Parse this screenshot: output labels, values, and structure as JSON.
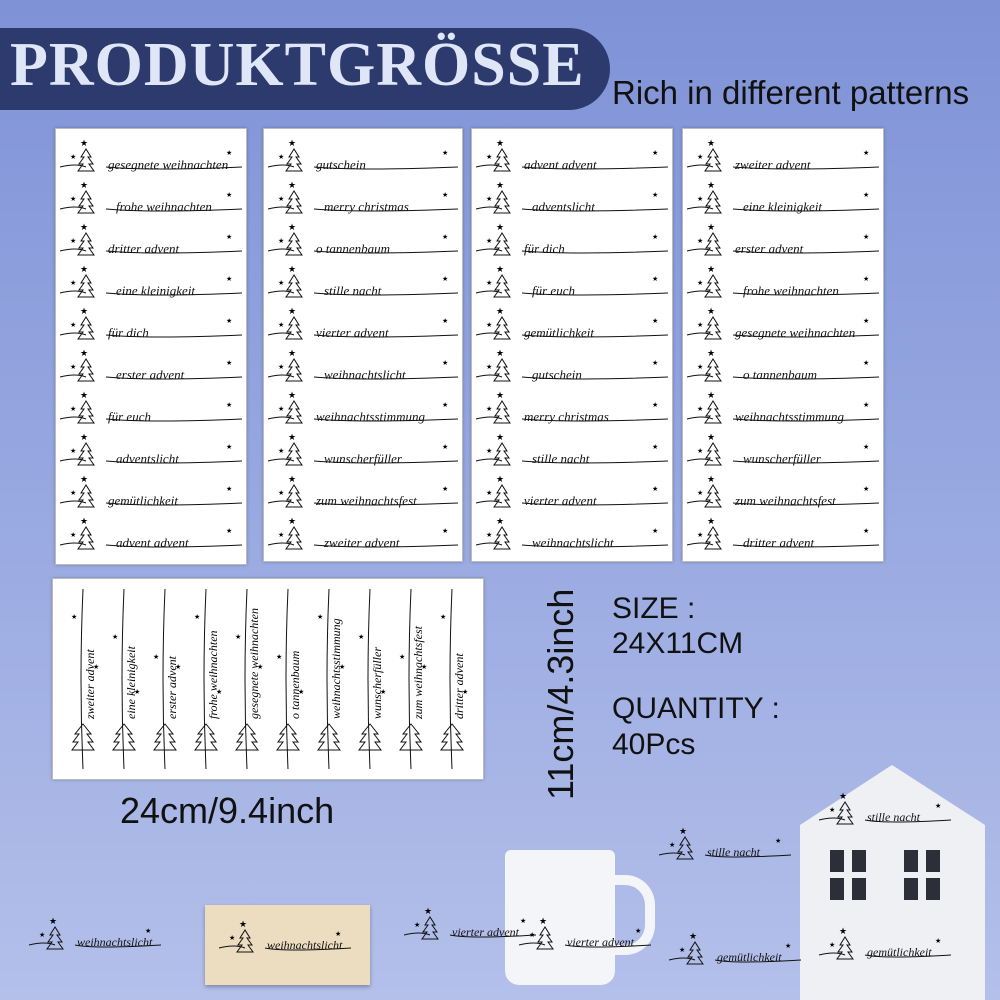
{
  "header": {
    "title": "PRODUKTGRÖSSE",
    "subtitle": "Rich in different patterns"
  },
  "sheets": [
    {
      "phrases": [
        "gesegnete weihnachten",
        "frohe weihnachten",
        "dritter advent",
        "eine kleinigkeit",
        "für dich",
        "erster advent",
        "für euch",
        "adventslicht",
        "gemütlichkeit",
        "advent advent"
      ]
    },
    {
      "phrases": [
        "gutschein",
        "merry christmas",
        "o tannenbaum",
        "stille nacht",
        "vierter advent",
        "weihnachtslicht",
        "weihnachtsstimmung",
        "wunscherfüller",
        "zum weihnachtsfest",
        "zweiter advent"
      ]
    },
    {
      "phrases": [
        "advent advent",
        "adventslicht",
        "für dich",
        "für euch",
        "gemütlichkeit",
        "gutschein",
        "merry christmas",
        "stille nacht",
        "vierter advent",
        "weihnachtslicht"
      ]
    },
    {
      "phrases": [
        "zweiter advent",
        "eine kleinigkeit",
        "erster advent",
        "frohe weihnachten",
        "gesegnete weihnachten",
        "o tannenbaum",
        "weihnachtsstimmung",
        "wunscherfüller",
        "zum weihnachtsfest",
        "dritter advent"
      ]
    }
  ],
  "strip_sheet": {
    "phrases": [
      "zweiter advent",
      "eine kleinigkeit",
      "erster advent",
      "frohe weihnachten",
      "gesegnete weihnachten",
      "o tannenbaum",
      "weihnachtsstimmung",
      "wunscherfüller",
      "zum weihnachtsfest",
      "dritter advent"
    ]
  },
  "dimensions": {
    "width": "24cm/9.4inch",
    "height": "11cm/4.3inch"
  },
  "specs": {
    "size_label": "SIZE :",
    "size": "24X11CM",
    "quantity_label": "QUANTITY :",
    "quantity": "40Pcs"
  },
  "examples": [
    {
      "text": "weihnachtslicht"
    },
    {
      "text": "weihnachtslicht"
    },
    {
      "text": "vierter advent"
    },
    {
      "text": "vierter advent"
    },
    {
      "text": "stille nacht"
    },
    {
      "text": "stille nacht"
    },
    {
      "text": "gemütlichkeit"
    },
    {
      "text": "gemütlichkeit"
    }
  ]
}
